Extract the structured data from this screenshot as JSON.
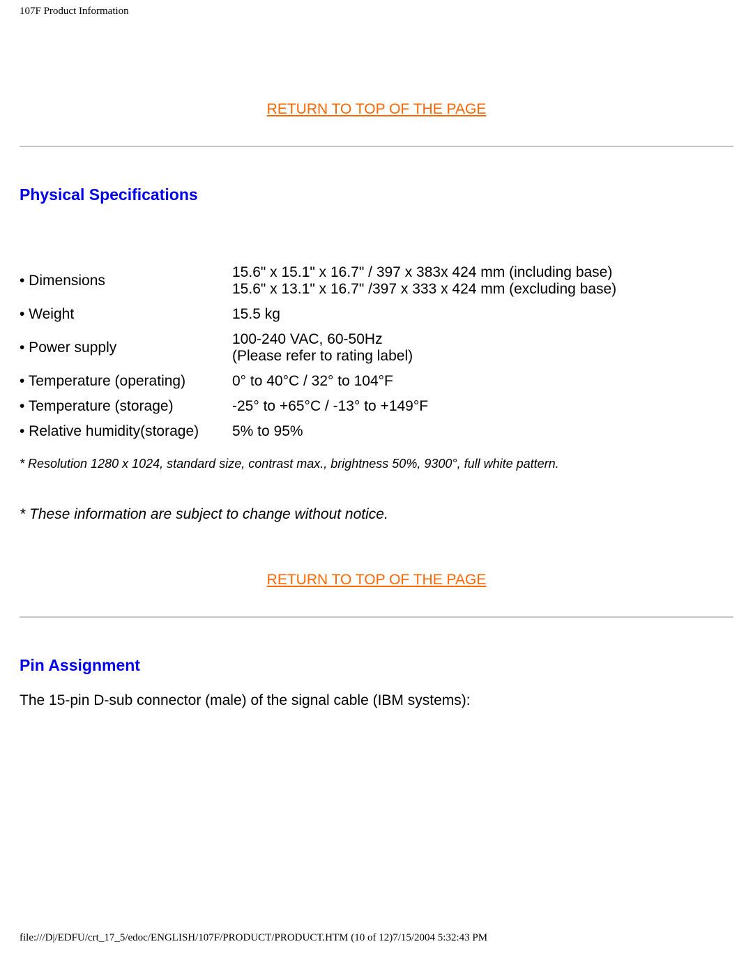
{
  "header": {
    "title": "107F Product Information"
  },
  "links": {
    "return_top": "RETURN TO TOP OF THE PAGE"
  },
  "sections": {
    "phys_spec": {
      "heading": "Physical Specifications"
    },
    "pin_assign": {
      "heading": "Pin Assignment",
      "intro": "The 15-pin D-sub connector (male) of the signal cable (IBM systems):"
    }
  },
  "spec_table": {
    "rows": [
      {
        "label": "• Dimensions",
        "line1": "15.6\" x 15.1\" x 16.7\" / 397 x 383x 424 mm (including base)",
        "line2": "15.6\" x 13.1\" x 16.7\" /397 x 333 x 424 mm (excluding base)"
      },
      {
        "label": "• Weight",
        "value": "15.5 kg"
      },
      {
        "label": "• Power supply",
        "line1": "100-240 VAC, 60-50Hz",
        "line2": "(Please refer to rating label)"
      },
      {
        "label": "• Temperature (operating)",
        "value": "0° to 40°C / 32° to 104°F"
      },
      {
        "label": "• Temperature (storage)",
        "value": "-25° to +65°C / -13° to +149°F"
      },
      {
        "label": "• Relative humidity(storage)",
        "value": "5% to 95%"
      }
    ],
    "footnote1": "* Resolution 1280 x 1024, standard size, contrast max., brightness 50%, 9300°, full white pattern.",
    "footnote2": "* These information are subject to change without notice."
  },
  "footer": {
    "path": "file:///D|/EDFU/crt_17_5/edoc/ENGLISH/107F/PRODUCT/PRODUCT.HTM (10 of 12)7/15/2004 5:32:43 PM"
  },
  "colors": {
    "link": "#ff6600",
    "heading": "#0000ee",
    "text": "#000000",
    "hr": "#c8c8c8",
    "background": "#ffffff"
  }
}
